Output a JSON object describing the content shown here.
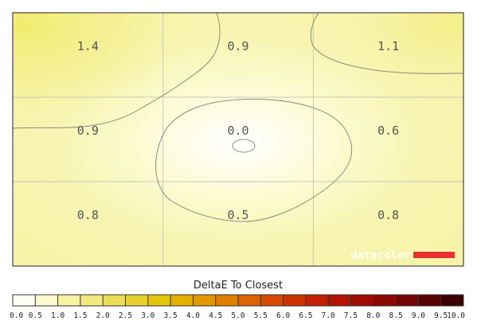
{
  "chart_data": {
    "type": "heatmap",
    "title": "DeltaE To Closest",
    "grid": true,
    "rows": 3,
    "cols": 3,
    "values": [
      [
        1.4,
        0.9,
        1.1
      ],
      [
        0.9,
        0.0,
        0.6
      ],
      [
        0.8,
        0.5,
        0.8
      ]
    ],
    "cell_labels": [
      [
        "1.4",
        "0.9",
        "1.1"
      ],
      [
        "0.9",
        "0.0",
        "0.6"
      ],
      [
        "0.8",
        "0.5",
        "0.8"
      ]
    ],
    "colorbar": {
      "min": 0,
      "max": 10,
      "ticks": [
        "0.0",
        "0.5",
        "1.0",
        "1.5",
        "2.0",
        "2.5",
        "3.0",
        "3.5",
        "4.0",
        "4.5",
        "5.0",
        "5.5",
        "6.0",
        "6.5",
        "7.0",
        "7.5",
        "8.0",
        "8.5",
        "9.0",
        "9.5",
        "10.0"
      ],
      "colors": [
        "#fffff2",
        "#fbf8c9",
        "#f6f1a3",
        "#f1e87d",
        "#ecdd56",
        "#e6d02e",
        "#e2c40a",
        "#e3b000",
        "#e19800",
        "#e07e00",
        "#dc6300",
        "#d54a00",
        "#cc3300",
        "#c22000",
        "#b31300",
        "#a20b00",
        "#8e0600",
        "#760300",
        "#5a0100",
        "#380000"
      ]
    },
    "watermark": {
      "text": "datacolor",
      "accent": "#e8312e"
    }
  }
}
